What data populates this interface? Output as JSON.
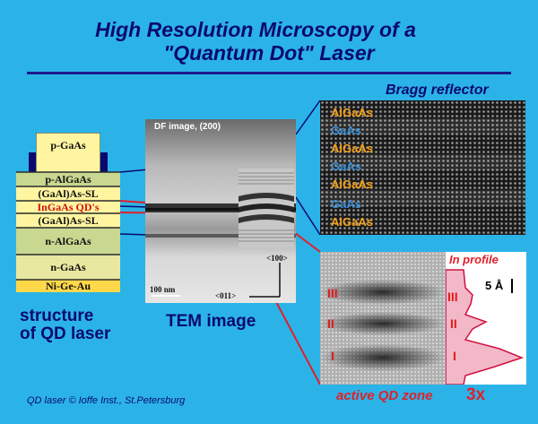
{
  "title": {
    "line1": "High Resolution Microscopy   of a",
    "line2": "\"Quantum Dot\"  Laser"
  },
  "bragg_title": "Bragg reflector",
  "structure": {
    "layers": [
      "p-GaAs",
      "p-AlGaAs",
      "(GaAl)As-SL",
      "InGaAs QD's",
      "(GaAl)As-SL",
      "n-AlGaAs",
      "n-GaAs",
      "Ni-Ge-Au"
    ],
    "label_line1": "structure",
    "label_line2": "of QD laser"
  },
  "tem": {
    "caption": "DF image, (200)",
    "scale": "100 nm",
    "dir_up": "<100>",
    "dir_right": "<011>",
    "label": "TEM image"
  },
  "bragg_layers": [
    "AlGaAs",
    "GaAs",
    "AlGaAs",
    "GaAs",
    "AlGaAs",
    "GaAs",
    "AlGaAs"
  ],
  "active_zone": {
    "label": "active QD zone",
    "magnification": "3x",
    "profile_title": "In profile",
    "scale": "5 Å",
    "markers_left": [
      "III",
      "II",
      "I"
    ],
    "markers_right": [
      "III",
      "II",
      "I"
    ]
  },
  "credit": "QD laser © Ioffe Inst., St.Petersburg",
  "colors": {
    "background": "#2bb3e8",
    "title": "#0a0a6e",
    "accent_red": "#e0202a",
    "algaas": "#f5a21c",
    "gaas": "#3a8fd8"
  }
}
